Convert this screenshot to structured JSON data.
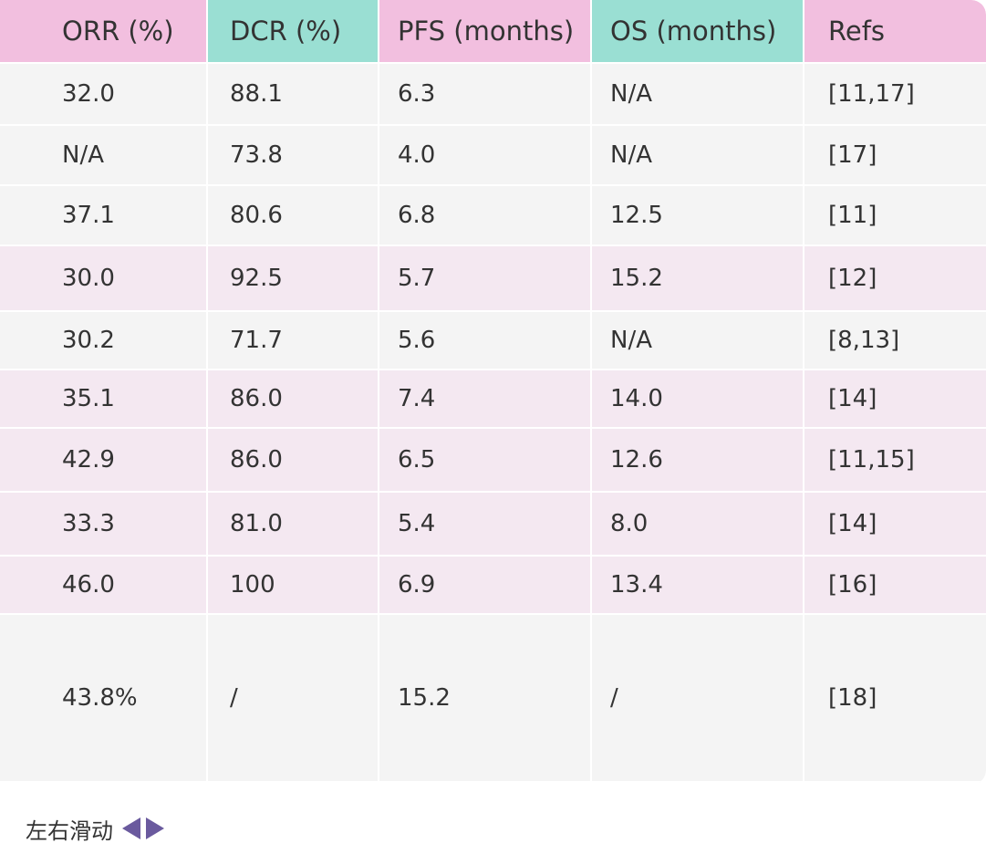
{
  "table": {
    "headers": [
      {
        "label": "ORR (%)",
        "color": "#f2bfdf"
      },
      {
        "label": "DCR (%)",
        "color": "#9adfd3"
      },
      {
        "label": "PFS (months)",
        "color": "#f2bfdf"
      },
      {
        "label": "OS (months)",
        "color": "#9adfd3"
      },
      {
        "label": "Refs",
        "color": "#f2bfdf"
      }
    ],
    "rows": [
      {
        "cells": [
          "32.0",
          "88.1",
          "6.3",
          "N/A",
          "[11,17]"
        ]
      },
      {
        "cells": [
          "N/A",
          "73.8",
          "4.0",
          "N/A",
          "[17]"
        ]
      },
      {
        "cells": [
          "37.1",
          "80.6",
          "6.8",
          "12.5",
          "[11]"
        ]
      },
      {
        "cells": [
          "30.0",
          "92.5",
          "5.7",
          "15.2",
          "[12]"
        ]
      },
      {
        "cells": [
          "30.2",
          "71.7",
          "5.6",
          "N/A",
          "[8,13]"
        ]
      },
      {
        "cells": [
          "35.1",
          "86.0",
          "7.4",
          "14.0",
          "[14]"
        ]
      },
      {
        "cells": [
          "42.9",
          "86.0",
          "6.5",
          "12.6",
          "[11,15]"
        ]
      },
      {
        "cells": [
          "33.3",
          "81.0",
          "5.4",
          "8.0",
          "[14]"
        ]
      },
      {
        "cells": [
          "46.0",
          "100",
          "6.9",
          "13.4",
          "[16]"
        ]
      },
      {
        "cells": [
          "43.8%",
          "/",
          "15.2",
          "/",
          "[18]"
        ]
      }
    ]
  },
  "footer": {
    "scroll_hint": "左右滑动",
    "left_arrow_icon": "triangle-left-icon",
    "right_arrow_icon": "triangle-right-icon",
    "arrow_color": "#6a5a9e"
  }
}
